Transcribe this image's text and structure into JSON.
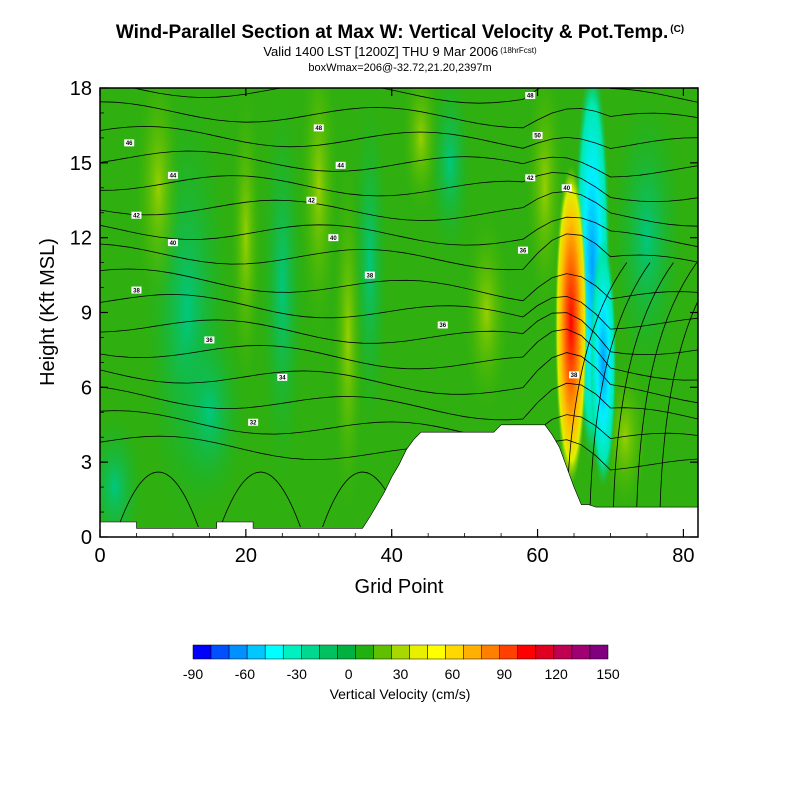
{
  "header": {
    "title": "Wind-Parallel Section at Max W: Vertical Velocity & Pot.Temp.",
    "copyright": "(C)",
    "valid": "Valid 1400 LST [1200Z] THU 9 Mar 2006",
    "forecast_hour": "(18hrFcst)",
    "box_info": "boxWmax=206@-32.72,21.20,2397m"
  },
  "chart_data": {
    "type": "heatmap",
    "title": "Wind-Parallel Section at Max W: Vertical Velocity & Pot.Temp.",
    "xlabel": "Grid Point",
    "ylabel": "Height (Kft MSL)",
    "xlim": [
      0,
      82
    ],
    "ylim": [
      0,
      18
    ],
    "x_ticks": [
      "0",
      "20",
      "40",
      "60",
      "80"
    ],
    "y_ticks": [
      "0",
      "3",
      "6",
      "9",
      "12",
      "15",
      "18"
    ],
    "colorbar": {
      "label": "Vertical Velocity (cm/s)",
      "tick_labels": [
        "-90",
        "-60",
        "-30",
        "0",
        "30",
        "60",
        "90",
        "120",
        "150"
      ],
      "colors": [
        "#0000ff",
        "#0050ff",
        "#0090ff",
        "#00c8ff",
        "#00ffff",
        "#00f0c0",
        "#00d890",
        "#00c060",
        "#00b040",
        "#20b010",
        "#60c000",
        "#a8d800",
        "#e8f000",
        "#ffff00",
        "#ffd800",
        "#ffb000",
        "#ff8000",
        "#ff4000",
        "#ff0000",
        "#e00020",
        "#c00050",
        "#a00070",
        "#800080"
      ]
    },
    "theta_contour_labels": [
      {
        "label": "46",
        "x": 4,
        "y": 15.8
      },
      {
        "label": "44",
        "x": 10,
        "y": 14.5
      },
      {
        "label": "42",
        "x": 5,
        "y": 12.9
      },
      {
        "label": "40",
        "x": 10,
        "y": 11.8
      },
      {
        "label": "38",
        "x": 5,
        "y": 9.9
      },
      {
        "label": "36",
        "x": 15,
        "y": 7.9
      },
      {
        "label": "34",
        "x": 25,
        "y": 6.4
      },
      {
        "label": "32",
        "x": 21,
        "y": 4.6
      },
      {
        "label": "48",
        "x": 30,
        "y": 16.4
      },
      {
        "label": "44",
        "x": 33,
        "y": 14.9
      },
      {
        "label": "42",
        "x": 29,
        "y": 13.5
      },
      {
        "label": "40",
        "x": 32,
        "y": 12.0
      },
      {
        "label": "38",
        "x": 37,
        "y": 10.5
      },
      {
        "label": "36",
        "x": 47,
        "y": 8.5
      },
      {
        "label": "48",
        "x": 59,
        "y": 17.7
      },
      {
        "label": "50",
        "x": 60,
        "y": 16.1
      },
      {
        "label": "42",
        "x": 59,
        "y": 14.4
      },
      {
        "label": "40",
        "x": 64,
        "y": 14.0
      },
      {
        "label": "36",
        "x": 58,
        "y": 11.5
      },
      {
        "label": "38",
        "x": 65,
        "y": 6.5
      }
    ],
    "terrain_height_kft": [
      {
        "x": 0,
        "h": 0.6
      },
      {
        "x": 5,
        "h": 0.6
      },
      {
        "x": 5,
        "h": 0.35
      },
      {
        "x": 16,
        "h": 0.35
      },
      {
        "x": 16,
        "h": 0.6
      },
      {
        "x": 21,
        "h": 0.6
      },
      {
        "x": 21,
        "h": 0.35
      },
      {
        "x": 36,
        "h": 0.35
      },
      {
        "x": 37,
        "h": 0.8
      },
      {
        "x": 38,
        "h": 1.3
      },
      {
        "x": 39,
        "h": 1.8
      },
      {
        "x": 40,
        "h": 2.4
      },
      {
        "x": 41,
        "h": 2.9
      },
      {
        "x": 42,
        "h": 3.5
      },
      {
        "x": 43,
        "h": 3.9
      },
      {
        "x": 44,
        "h": 4.2
      },
      {
        "x": 54,
        "h": 4.2
      },
      {
        "x": 55,
        "h": 4.5
      },
      {
        "x": 61,
        "h": 4.5
      },
      {
        "x": 62,
        "h": 4.1
      },
      {
        "x": 63,
        "h": 3.6
      },
      {
        "x": 64,
        "h": 2.8
      },
      {
        "x": 65,
        "h": 2.0
      },
      {
        "x": 66,
        "h": 1.3
      },
      {
        "x": 67,
        "h": 1.3
      },
      {
        "x": 68,
        "h": 1.2
      },
      {
        "x": 82,
        "h": 1.2
      }
    ]
  }
}
